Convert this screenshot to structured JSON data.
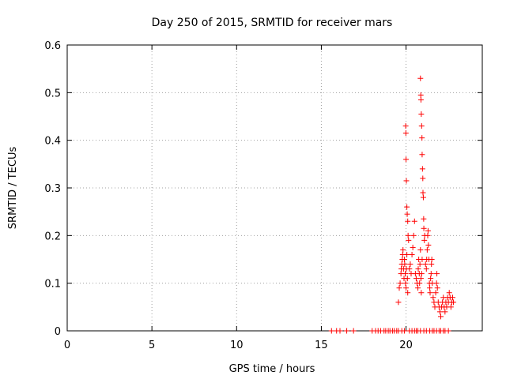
{
  "chart_data": {
    "type": "scatter",
    "title": "Day 250 of 2015, SRMTID for receiver mars",
    "xlabel": "GPS time / hours",
    "ylabel": "SRMTID / TECUs",
    "xlim": [
      0,
      24.5
    ],
    "ylim": [
      0,
      0.6
    ],
    "x_ticks": [
      "0",
      "5",
      "10",
      "15",
      "20"
    ],
    "x_tick_values": [
      0,
      5,
      10,
      15,
      20
    ],
    "y_ticks": [
      "0",
      "0.1",
      "0.2",
      "0.3",
      "0.4",
      "0.5",
      "0.6"
    ],
    "y_tick_values": [
      0,
      0.1,
      0.2,
      0.3,
      0.4,
      0.5,
      0.6
    ],
    "grid": true,
    "marker": "plus",
    "color": "#ff0000",
    "series": [
      {
        "name": "SRMTID",
        "points": [
          [
            15.6,
            0
          ],
          [
            15.9,
            0
          ],
          [
            16.1,
            0
          ],
          [
            16.5,
            0
          ],
          [
            16.9,
            0
          ],
          [
            18.0,
            0
          ],
          [
            18.2,
            0
          ],
          [
            18.35,
            0
          ],
          [
            18.5,
            0
          ],
          [
            18.7,
            0
          ],
          [
            18.8,
            0
          ],
          [
            18.95,
            0
          ],
          [
            19.05,
            0
          ],
          [
            19.2,
            0
          ],
          [
            19.3,
            0
          ],
          [
            19.45,
            0
          ],
          [
            19.55,
            0
          ],
          [
            19.75,
            0
          ],
          [
            19.9,
            0
          ],
          [
            20.2,
            0
          ],
          [
            20.35,
            0
          ],
          [
            20.5,
            0
          ],
          [
            20.6,
            0
          ],
          [
            20.7,
            0
          ],
          [
            20.85,
            0
          ],
          [
            21.05,
            0
          ],
          [
            21.2,
            0
          ],
          [
            21.4,
            0
          ],
          [
            21.55,
            0
          ],
          [
            21.65,
            0
          ],
          [
            21.8,
            0
          ],
          [
            21.95,
            0
          ],
          [
            22.05,
            0
          ],
          [
            22.2,
            0
          ],
          [
            22.3,
            0
          ],
          [
            22.5,
            0
          ],
          [
            19.55,
            0.06
          ],
          [
            19.6,
            0.09
          ],
          [
            19.65,
            0.1
          ],
          [
            19.7,
            0.12
          ],
          [
            19.72,
            0.13
          ],
          [
            19.75,
            0.14
          ],
          [
            19.78,
            0.15
          ],
          [
            19.8,
            0.16
          ],
          [
            19.82,
            0.17
          ],
          [
            19.85,
            0.13
          ],
          [
            19.88,
            0.11
          ],
          [
            19.9,
            0.15
          ],
          [
            19.92,
            0.14
          ],
          [
            19.95,
            0.12
          ],
          [
            19.97,
            0.1
          ],
          [
            20.0,
            0.09
          ],
          [
            20.02,
            0.13
          ],
          [
            20.05,
            0.16
          ],
          [
            20.08,
            0.11
          ],
          [
            20.1,
            0.08
          ],
          [
            19.98,
            0.43
          ],
          [
            19.99,
            0.415
          ],
          [
            20.0,
            0.36
          ],
          [
            20.02,
            0.315
          ],
          [
            20.05,
            0.26
          ],
          [
            20.07,
            0.245
          ],
          [
            20.1,
            0.23
          ],
          [
            20.12,
            0.2
          ],
          [
            20.15,
            0.19
          ],
          [
            20.2,
            0.13
          ],
          [
            20.25,
            0.14
          ],
          [
            20.3,
            0.12
          ],
          [
            20.35,
            0.16
          ],
          [
            20.4,
            0.175
          ],
          [
            20.45,
            0.2
          ],
          [
            20.5,
            0.23
          ],
          [
            20.55,
            0.12
          ],
          [
            20.6,
            0.11
          ],
          [
            20.65,
            0.1
          ],
          [
            20.7,
            0.09
          ],
          [
            20.72,
            0.13
          ],
          [
            20.75,
            0.15
          ],
          [
            20.78,
            0.12
          ],
          [
            20.8,
            0.1
          ],
          [
            20.82,
            0.14
          ],
          [
            20.85,
            0.17
          ],
          [
            20.88,
            0.11
          ],
          [
            20.9,
            0.08
          ],
          [
            20.92,
            0.12
          ],
          [
            20.95,
            0.15
          ],
          [
            20.85,
            0.53
          ],
          [
            20.87,
            0.495
          ],
          [
            20.88,
            0.485
          ],
          [
            20.9,
            0.455
          ],
          [
            20.92,
            0.43
          ],
          [
            20.94,
            0.405
          ],
          [
            20.95,
            0.37
          ],
          [
            20.97,
            0.34
          ],
          [
            20.99,
            0.32
          ],
          [
            21.0,
            0.29
          ],
          [
            21.02,
            0.28
          ],
          [
            21.04,
            0.235
          ],
          [
            21.05,
            0.215
          ],
          [
            21.08,
            0.19
          ],
          [
            21.1,
            0.2
          ],
          [
            21.15,
            0.14
          ],
          [
            21.2,
            0.13
          ],
          [
            21.22,
            0.15
          ],
          [
            21.25,
            0.17
          ],
          [
            21.28,
            0.2
          ],
          [
            21.3,
            0.21
          ],
          [
            21.32,
            0.18
          ],
          [
            21.35,
            0.15
          ],
          [
            21.38,
            0.1
          ],
          [
            21.4,
            0.09
          ],
          [
            21.42,
            0.08
          ],
          [
            21.45,
            0.11
          ],
          [
            21.48,
            0.12
          ],
          [
            21.5,
            0.14
          ],
          [
            21.52,
            0.15
          ],
          [
            21.55,
            0.1
          ],
          [
            21.6,
            0.07
          ],
          [
            21.65,
            0.06
          ],
          [
            21.7,
            0.05
          ],
          [
            21.75,
            0.08
          ],
          [
            21.8,
            0.1
          ],
          [
            21.82,
            0.12
          ],
          [
            21.85,
            0.09
          ],
          [
            21.9,
            0.06
          ],
          [
            21.95,
            0.05
          ],
          [
            22.0,
            0.04
          ],
          [
            22.05,
            0.03
          ],
          [
            22.1,
            0.05
          ],
          [
            22.15,
            0.06
          ],
          [
            22.2,
            0.07
          ],
          [
            22.25,
            0.05
          ],
          [
            22.3,
            0.04
          ],
          [
            22.35,
            0.06
          ],
          [
            22.4,
            0.05
          ],
          [
            22.45,
            0.07
          ],
          [
            22.5,
            0.06
          ],
          [
            22.55,
            0.08
          ],
          [
            22.6,
            0.07
          ],
          [
            22.65,
            0.05
          ],
          [
            22.7,
            0.06
          ],
          [
            22.75,
            0.07
          ],
          [
            22.8,
            0.06
          ]
        ]
      }
    ]
  }
}
